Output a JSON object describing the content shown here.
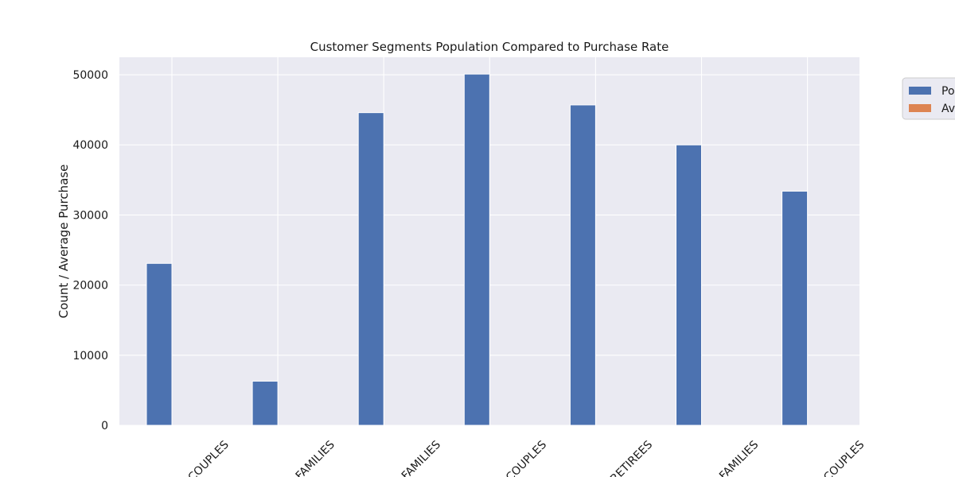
{
  "chart_data": {
    "type": "bar",
    "title": "Customer Segments Population Compared to Purchase Rate",
    "xlabel": "",
    "ylabel": "Count / Average Purchase",
    "ylim": [
      0,
      52500
    ],
    "yticks": [
      0,
      10000,
      20000,
      30000,
      40000,
      50000
    ],
    "grid": true,
    "legend_position": "outside-right",
    "categories": [
      "COUPLES",
      "FAMILIES",
      "FAMILIES",
      "COUPLES",
      "RETIREES",
      "FAMILIES",
      "COUPLES"
    ],
    "series": [
      {
        "name": "Po",
        "color": "#4c72b0",
        "values": [
          23100,
          6300,
          44600,
          50100,
          45700,
          40000,
          33400
        ]
      },
      {
        "name": "Av",
        "color": "#dd8452",
        "values": [
          0,
          0,
          0,
          0,
          0,
          0,
          0
        ]
      }
    ],
    "colors": {
      "plot_background": "#eaeaf2",
      "grid": "#ffffff"
    }
  }
}
